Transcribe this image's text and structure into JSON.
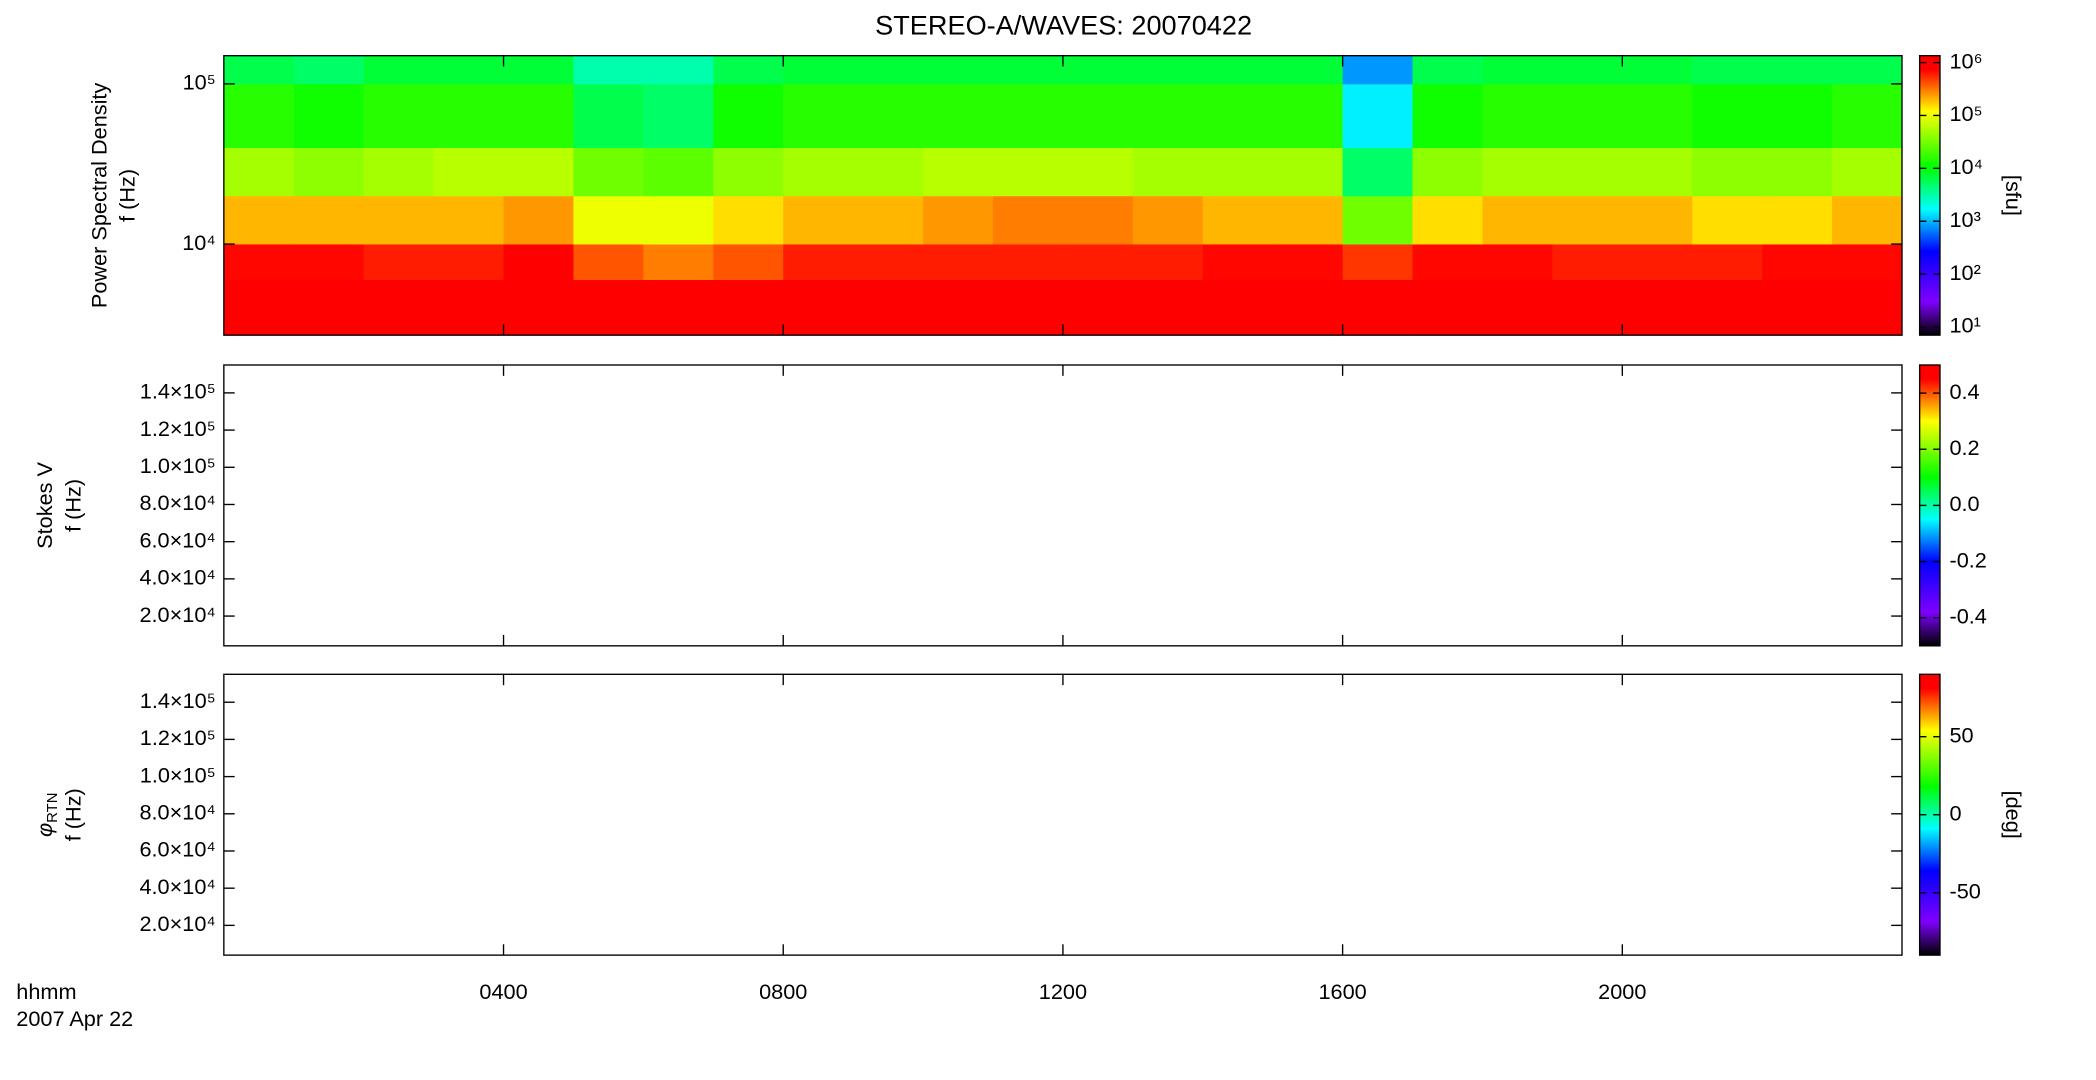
{
  "chart_data": [
    {
      "type": "heatmap",
      "title": "STEREO-A/WAVES: 20070422",
      "ylabel": "Power Spectral Density",
      "yunit": "f (Hz)",
      "yscale": "log",
      "ylim": [
        2700,
        150000
      ],
      "yticks": [
        {
          "value": 10000,
          "label": "10⁴"
        },
        {
          "value": 100000,
          "label": "10⁵"
        }
      ],
      "xlim": [
        0,
        24
      ],
      "x_edges": [
        0,
        1,
        2,
        3,
        4,
        5,
        6,
        7,
        8,
        9,
        10,
        11,
        12,
        13,
        14,
        15,
        16,
        17,
        18,
        19,
        20,
        21,
        22,
        23,
        24
      ],
      "y_edges": [
        2700,
        6000,
        10000,
        20000,
        40000,
        100000,
        150000
      ],
      "z": [
        [
          1000000.0,
          1000000.0,
          1000000.0,
          1000000.0,
          1000000.0,
          1000000.0,
          1000000.0,
          1000000.0,
          1000000.0,
          1000000.0,
          1000000.0,
          1000000.0,
          1000000.0,
          1000000.0,
          1000000.0,
          1000000.0,
          800000.0,
          1000000.0,
          1000000.0,
          1000000.0,
          1000000.0,
          1000000.0,
          1000000.0,
          1000000.0
        ],
        [
          700000.0,
          700000.0,
          600000.0,
          600000.0,
          800000.0,
          400000.0,
          300000.0,
          400000.0,
          600000.0,
          600000.0,
          600000.0,
          600000.0,
          600000.0,
          600000.0,
          700000.0,
          700000.0,
          500000.0,
          700000.0,
          700000.0,
          600000.0,
          600000.0,
          600000.0,
          700000.0,
          700000.0
        ],
        [
          200000.0,
          200000.0,
          200000.0,
          200000.0,
          250000.0,
          100000.0,
          100000.0,
          150000.0,
          200000.0,
          200000.0,
          250000.0,
          300000.0,
          300000.0,
          250000.0,
          200000.0,
          200000.0,
          30000.0,
          150000.0,
          200000.0,
          200000.0,
          200000.0,
          150000.0,
          150000.0,
          200000.0
        ],
        [
          50000.0,
          40000.0,
          50000.0,
          60000.0,
          60000.0,
          30000.0,
          25000.0,
          40000.0,
          50000.0,
          50000.0,
          60000.0,
          60000.0,
          60000.0,
          50000.0,
          50000.0,
          50000.0,
          5000.0,
          40000.0,
          50000.0,
          50000.0,
          50000.0,
          40000.0,
          40000.0,
          50000.0
        ],
        [
          15000.0,
          12000.0,
          15000.0,
          15000.0,
          15000.0,
          6000.0,
          5000.0,
          12000.0,
          15000.0,
          15000.0,
          15000.0,
          15000.0,
          15000.0,
          15000.0,
          15000.0,
          15000.0,
          1500.0,
          12000.0,
          15000.0,
          15000.0,
          15000.0,
          12000.0,
          12000.0,
          15000.0
        ],
        [
          6000.0,
          5000.0,
          7000.0,
          7000.0,
          7000.0,
          3000.0,
          3000.0,
          6000.0,
          7000.0,
          7000.0,
          7000.0,
          7000.0,
          7000.0,
          7000.0,
          7000.0,
          7000.0,
          800.0,
          6000.0,
          7000.0,
          7000.0,
          7000.0,
          6000.0,
          6000.0,
          6000.0
        ]
      ],
      "zscale": "log",
      "zlim": [
        7,
        1350000
      ],
      "zticks": [
        {
          "value": 1000000,
          "label": "10⁶"
        },
        {
          "value": 100000,
          "label": "10⁵"
        },
        {
          "value": 10000,
          "label": "10⁴"
        },
        {
          "value": 1000,
          "label": "10³"
        },
        {
          "value": 100,
          "label": "10²"
        },
        {
          "value": 10,
          "label": "10¹"
        }
      ],
      "zlabel": "[sfu]",
      "colormap": [
        [
          0,
          "#000000"
        ],
        [
          0.12,
          "#7f00ff"
        ],
        [
          0.3,
          "#0000ff"
        ],
        [
          0.45,
          "#00ffff"
        ],
        [
          0.6,
          "#00ff00"
        ],
        [
          0.8,
          "#ffff00"
        ],
        [
          0.95,
          "#ff0000"
        ],
        [
          1,
          "#ff0000"
        ]
      ]
    },
    {
      "type": "heatmap",
      "ylabel": "Stokes V",
      "yunit": "f (Hz)",
      "ylim": [
        4000,
        155000
      ],
      "yticks": [
        {
          "value": 20000,
          "label": "2.0×10⁴"
        },
        {
          "value": 40000,
          "label": "4.0×10⁴"
        },
        {
          "value": 60000,
          "label": "6.0×10⁴"
        },
        {
          "value": 80000,
          "label": "8.0×10⁴"
        },
        {
          "value": 100000,
          "label": "1.0×10⁵"
        },
        {
          "value": 120000,
          "label": "1.2×10⁵"
        },
        {
          "value": 140000,
          "label": "1.4×10⁵"
        }
      ],
      "xlim": [
        0,
        24
      ],
      "zlim": [
        -0.5,
        0.5
      ],
      "zticks": [
        0.4,
        0.2,
        {
          "value": 0,
          "label": "0.0"
        },
        -0.2,
        -0.4
      ],
      "colormap": [
        [
          0,
          "#000000"
        ],
        [
          0.12,
          "#7f00ff"
        ],
        [
          0.3,
          "#0000ff"
        ],
        [
          0.45,
          "#00ffff"
        ],
        [
          0.6,
          "#00ff00"
        ],
        [
          0.8,
          "#ffff00"
        ],
        [
          0.95,
          "#ff0000"
        ],
        [
          1,
          "#ff0000"
        ]
      ]
    },
    {
      "type": "heatmap",
      "ylabel": "φ",
      "ylabel_sub": "RTN",
      "yunit": "f (Hz)",
      "ylim": [
        4000,
        155000
      ],
      "yticks": [
        {
          "value": 20000,
          "label": "2.0×10⁴"
        },
        {
          "value": 40000,
          "label": "4.0×10⁴"
        },
        {
          "value": 60000,
          "label": "6.0×10⁴"
        },
        {
          "value": 80000,
          "label": "8.0×10⁴"
        },
        {
          "value": 100000,
          "label": "1.0×10⁵"
        },
        {
          "value": 120000,
          "label": "1.2×10⁵"
        },
        {
          "value": 140000,
          "label": "1.4×10⁵"
        }
      ],
      "xlim": [
        0,
        24
      ],
      "xticks": [
        {
          "value": 4,
          "label": "0400"
        },
        {
          "value": 8,
          "label": "0800"
        },
        {
          "value": 12,
          "label": "1200"
        },
        {
          "value": 16,
          "label": "1600"
        },
        {
          "value": 20,
          "label": "2000"
        }
      ],
      "xlabel": "hhmm",
      "date_label": "2007 Apr 22",
      "zlim": [
        -90,
        90
      ],
      "zticks": [
        50,
        0,
        -50
      ],
      "zlabel": "[deg]",
      "colormap": [
        [
          0,
          "#000000"
        ],
        [
          0.12,
          "#7f00ff"
        ],
        [
          0.3,
          "#0000ff"
        ],
        [
          0.45,
          "#00ffff"
        ],
        [
          0.6,
          "#00ff00"
        ],
        [
          0.8,
          "#ffff00"
        ],
        [
          0.95,
          "#ff0000"
        ],
        [
          1,
          "#ff0000"
        ]
      ]
    }
  ]
}
